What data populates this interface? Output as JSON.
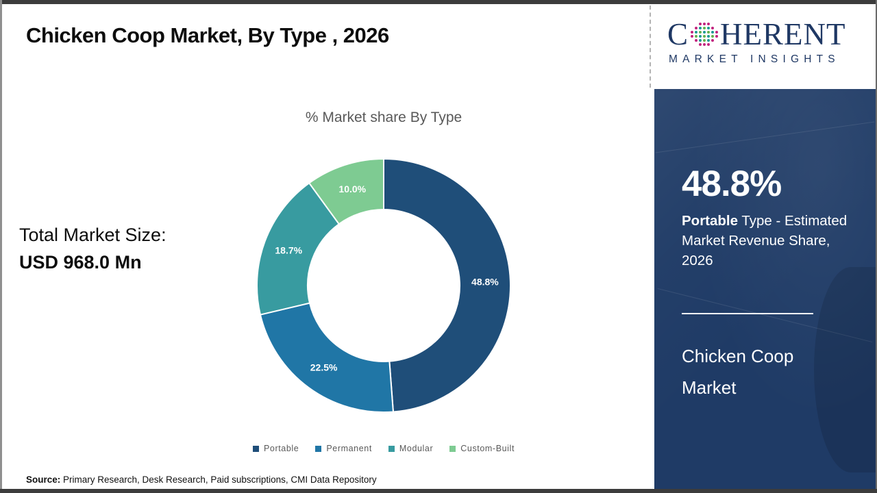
{
  "header": {
    "title": "Chicken Coop Market, By Type , 2026"
  },
  "logo": {
    "prefix": "C",
    "suffix": "HERENT",
    "tagline": "MARKET INSIGHTS",
    "brand_color": "#1F3864"
  },
  "main": {
    "total_market": {
      "label": "Total Market Size:",
      "value": "USD 968.0 Mn"
    },
    "source": {
      "label": "Source:",
      "text": " Primary Research, Desk Research, Paid subscriptions, CMI Data Repository"
    }
  },
  "sidebar": {
    "bg_color": "#1F3B66",
    "stat_value": "48.8%",
    "stat_desc_bold": "Portable",
    "stat_desc_rest": " Type - Estimated Market Revenue Share, 2026",
    "title": "Chicken Coop Market"
  },
  "chart_data": {
    "type": "pie",
    "variant": "donut",
    "title": "% Market share By Type",
    "categories": [
      "Portable",
      "Permanent",
      "Modular",
      "Custom-Built"
    ],
    "values": [
      48.8,
      22.5,
      18.7,
      10.0
    ],
    "labels": [
      "48.8%",
      "22.5%",
      "18.7%",
      "10.0%"
    ],
    "colors": [
      "#1F4E79",
      "#2076A6",
      "#389BA0",
      "#7ECB92"
    ],
    "start_angle_deg": 0,
    "direction": "clockwise",
    "inner_radius_ratio": 0.6,
    "legend_position": "bottom",
    "label_color": "#FFFFFF",
    "title_color": "#595959"
  }
}
